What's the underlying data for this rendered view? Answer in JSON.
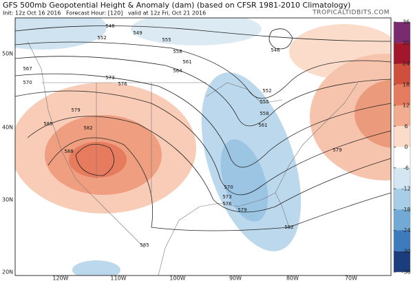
{
  "header": {
    "title": "GFS 500mb Geopotential Height & Anomaly (dam) (based on CFSR 1981-2010 Climatology)",
    "subtitle": "Init: 12z Oct 16 2016   Forecast Hour: [120]   valid at 12z Fri, Oct 21 2016",
    "site": "TROPICALTIDBITS.COM"
  },
  "map": {
    "lat_labels": [
      "50N",
      "40N",
      "30N",
      "20N"
    ],
    "lon_labels": [
      "120W",
      "110W",
      "100W",
      "90W",
      "80W",
      "70W"
    ],
    "contour_labels": [
      546,
      549,
      552,
      555,
      558,
      561,
      564,
      567,
      570,
      573,
      576,
      579,
      582,
      585,
      588,
      546,
      552,
      555,
      558,
      561,
      570,
      573,
      576,
      579,
      579,
      582,
      585
    ]
  },
  "colorbar": {
    "ticks": [
      36,
      30,
      24,
      18,
      12,
      6,
      0,
      -6,
      -12,
      -18,
      -24,
      -30,
      -36
    ],
    "colors": [
      "#7a2a6e",
      "#a3172c",
      "#cf4f3d",
      "#e57c5f",
      "#f2ac8f",
      "#fbdccb",
      "#ffffff",
      "#d4e6f2",
      "#a8cde6",
      "#72aad5",
      "#3d7bbd",
      "#1c3d7d"
    ]
  }
}
